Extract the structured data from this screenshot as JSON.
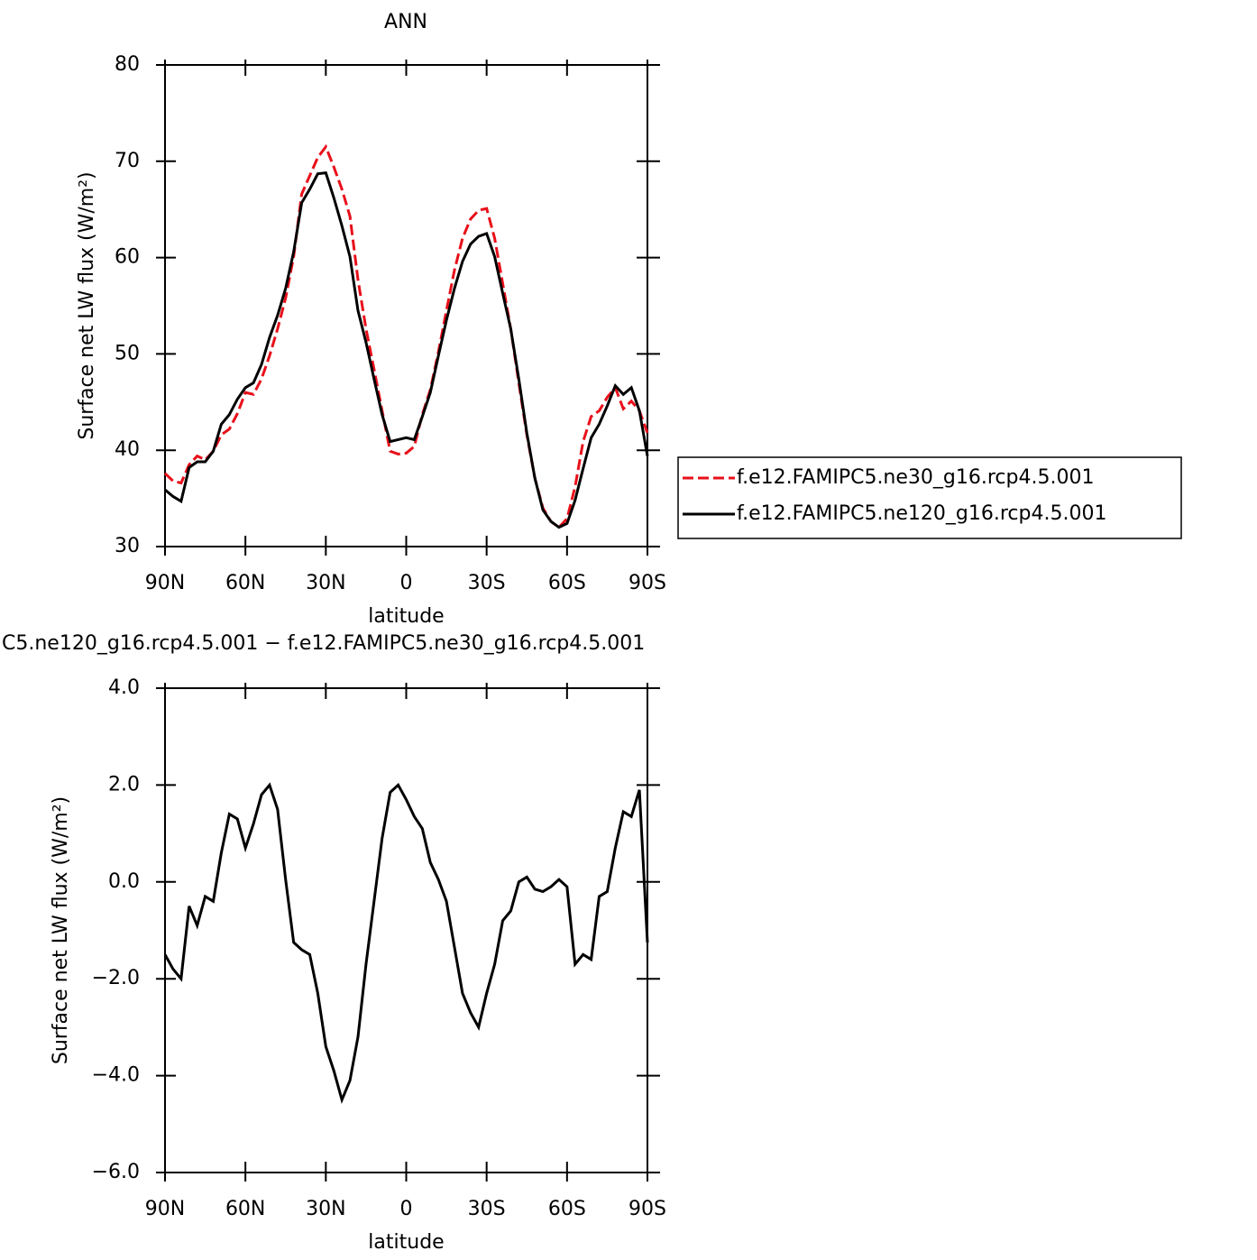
{
  "chart_data": [
    {
      "type": "line",
      "title": "ANN",
      "x_label": "latitude",
      "y_label": "Surface net LW flux (W/m²)",
      "x": [
        90,
        87,
        84,
        81,
        78,
        75,
        72,
        69,
        66,
        63,
        60,
        57,
        54,
        51,
        48,
        45,
        42,
        39,
        36,
        33,
        30,
        27,
        24,
        21,
        18,
        15,
        12,
        9,
        6,
        3,
        0,
        -3,
        -6,
        -9,
        -12,
        -15,
        -18,
        -21,
        -24,
        -27,
        -30,
        -33,
        -36,
        -39,
        -42,
        -45,
        -48,
        -51,
        -54,
        -57,
        -60,
        -63,
        -66,
        -69,
        -72,
        -75,
        -78,
        -81,
        -84,
        -87,
        -90
      ],
      "series": [
        {
          "name": "f.e12.FAMIPC5.ne30_g16.rcp4.5.001",
          "color": "#e8101a",
          "dash": true,
          "values": [
            37.6,
            36.8,
            36.6,
            38.5,
            39.4,
            39,
            39.9,
            41.6,
            42.2,
            43.8,
            46,
            45.8,
            47.4,
            49.8,
            52.6,
            55.8,
            60.1,
            66.6,
            68.5,
            70.4,
            71.5,
            69.4,
            67.1,
            64.3,
            57.7,
            52.6,
            48.4,
            44.1,
            39.9,
            39.6,
            39.7,
            40.4,
            43.7,
            46.3,
            50.2,
            54.5,
            58.7,
            62,
            64,
            64.9,
            65.1,
            62,
            57.3,
            52.6,
            47,
            41.6,
            37.1,
            34,
            32.6,
            32,
            32.9,
            36.2,
            40.9,
            43.5,
            44.1,
            45.5,
            46.5,
            44.3,
            45.1,
            44.1,
            41.8
          ]
        },
        {
          "name": "f.e12.FAMIPC5.ne120_g16.rcp4.5.001",
          "color": "#000000",
          "dash": false,
          "values": [
            35.9,
            35.2,
            34.7,
            38.2,
            38.8,
            38.8,
            39.9,
            42.7,
            43.7,
            45.3,
            46.5,
            47,
            48.9,
            51.7,
            54,
            56.8,
            60.6,
            65.7,
            67.1,
            68.7,
            68.8,
            66.2,
            63.3,
            60.1,
            54.5,
            51.2,
            47.4,
            43.7,
            40.9,
            41.1,
            41.3,
            41.1,
            43.5,
            46,
            49.8,
            53.5,
            56.8,
            59.6,
            61.4,
            62.2,
            62.5,
            60.1,
            56.3,
            52.6,
            47.4,
            41.8,
            37.1,
            33.8,
            32.6,
            32,
            32.4,
            34.8,
            38.1,
            41.3,
            42.7,
            44.6,
            46.7,
            45.8,
            46.5,
            44.1,
            39.4
          ]
        }
      ],
      "xlim": [
        90,
        -90
      ],
      "xticks": [
        {
          "value": 90,
          "label": "90N"
        },
        {
          "value": 60,
          "label": "60N"
        },
        {
          "value": 30,
          "label": "30N"
        },
        0,
        {
          "value": -30,
          "label": "30S"
        },
        {
          "value": -60,
          "label": "60S"
        },
        {
          "value": -90,
          "label": "90S"
        }
      ],
      "ylim": [
        30,
        80
      ],
      "yticks": [
        30,
        40,
        50,
        60,
        70,
        80
      ],
      "legend": "right"
    },
    {
      "type": "line",
      "title": "C5.ne120_g16.rcp4.5.001 − f.e12.FAMIPC5.ne30_g16.rcp4.5.001",
      "x_label": "latitude",
      "y_label": "Surface net LW flux (W/m²)",
      "x": [
        90,
        87,
        84,
        81,
        78,
        75,
        72,
        69,
        66,
        63,
        60,
        57,
        54,
        51,
        48,
        45,
        42,
        39,
        36,
        33,
        30,
        27,
        24,
        21,
        18,
        15,
        12,
        9,
        6,
        3,
        0,
        -3,
        -6,
        -9,
        -12,
        -15,
        -18,
        -21,
        -24,
        -27,
        -30,
        -33,
        -36,
        -39,
        -42,
        -45,
        -48,
        -51,
        -54,
        -57,
        -60,
        -63,
        -66,
        -69,
        -72,
        -75,
        -78,
        -81,
        -84,
        -87,
        -90
      ],
      "series": [
        {
          "color": "#000000",
          "dash": false,
          "values": [
            -1.5,
            -1.8,
            -2.0,
            -0.5,
            -0.9,
            -0.3,
            -0.4,
            0.6,
            1.4,
            1.3,
            0.7,
            1.2,
            1.8,
            2.0,
            1.5,
            0.05,
            -1.25,
            -1.4,
            -1.5,
            -2.3,
            -3.4,
            -3.9,
            -4.5,
            -4.1,
            -3.2,
            -1.7,
            -0.4,
            0.9,
            1.85,
            2.0,
            1.7,
            1.35,
            1.1,
            0.4,
            0.05,
            -0.4,
            -1.35,
            -2.3,
            -2.7,
            -3.0,
            -2.3,
            -1.7,
            -0.8,
            -0.6,
            0,
            0.1,
            -0.15,
            -0.2,
            -0.1,
            0.05,
            -0.1,
            -1.7,
            -1.5,
            -1.6,
            -0.3,
            -0.2,
            0.7,
            1.45,
            1.35,
            1.9,
            -1.25
          ]
        }
      ],
      "xlim": [
        90,
        -90
      ],
      "xticks": [
        {
          "value": 90,
          "label": "90N"
        },
        {
          "value": 60,
          "label": "60N"
        },
        {
          "value": 30,
          "label": "30N"
        },
        0,
        {
          "value": -30,
          "label": "30S"
        },
        {
          "value": -60,
          "label": "60S"
        },
        {
          "value": -90,
          "label": "90S"
        }
      ],
      "ylim": [
        -6,
        4
      ],
      "yticks": [
        {
          "value": -6,
          "label": "−6.0"
        },
        {
          "value": -4,
          "label": "−4.0"
        },
        {
          "value": -2,
          "label": "−2.0"
        },
        {
          "value": 0,
          "label": "0.0"
        },
        {
          "value": 2,
          "label": "2.0"
        },
        {
          "value": 4,
          "label": "4.0"
        }
      ]
    }
  ]
}
